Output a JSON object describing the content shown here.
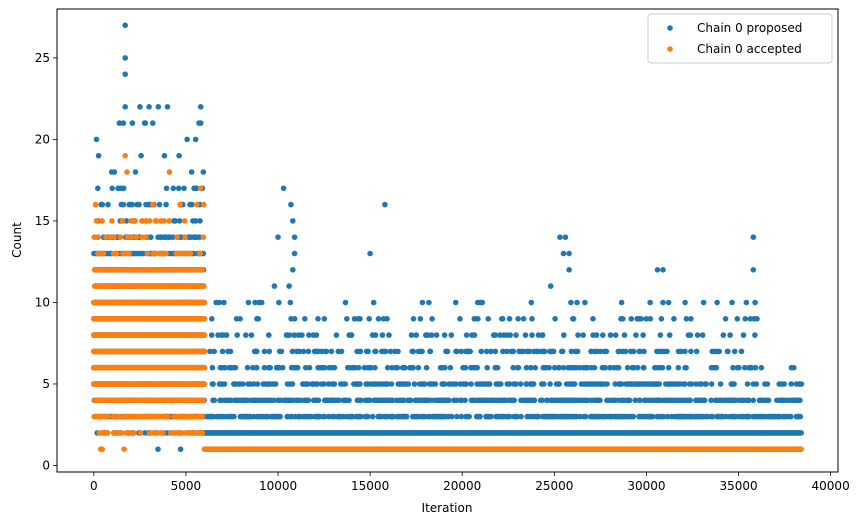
{
  "chart_data": {
    "type": "scatter",
    "xlabel": "Iteration",
    "ylabel": "Count",
    "xlim": [
      -2000,
      40400
    ],
    "ylim": [
      -0.4,
      28.0
    ],
    "xticks": [
      0,
      5000,
      10000,
      15000,
      20000,
      25000,
      30000,
      35000,
      40000
    ],
    "yticks": [
      0,
      5,
      10,
      15,
      20,
      25
    ],
    "grid": false,
    "legend": "top-right",
    "series": [
      {
        "name": "Chain 0 proposed",
        "color": "#1f77b4",
        "segments": [
          {
            "x_range": [
              0,
              6000
            ],
            "levels": [
              [
                1,
                0.02
              ],
              [
                2,
                0.35
              ],
              [
                3,
                0.6
              ],
              [
                4,
                0.85
              ],
              [
                5,
                0.95
              ],
              [
                6,
                0.95
              ],
              [
                7,
                0.95
              ],
              [
                8,
                0.95
              ],
              [
                9,
                0.95
              ],
              [
                10,
                0.95
              ],
              [
                11,
                0.9
              ],
              [
                12,
                0.85
              ],
              [
                13,
                0.6
              ],
              [
                14,
                0.45
              ],
              [
                15,
                0.2
              ],
              [
                16,
                0.15
              ],
              [
                17,
                0.08
              ],
              [
                18,
                0.05
              ],
              [
                19,
                0.03
              ],
              [
                20,
                0.02
              ],
              [
                21,
                0.015
              ],
              [
                22,
                0.01
              ]
            ]
          },
          {
            "x_range": [
              6000,
              38400
            ],
            "levels": [
              [
                2,
                1.0
              ],
              [
                3,
                0.55
              ]
            ]
          },
          {
            "x_range": [
              6300,
              11000
            ],
            "levels": [
              [
                4,
                0.55
              ],
              [
                5,
                0.35
              ],
              [
                6,
                0.25
              ],
              [
                7,
                0.2
              ],
              [
                8,
                0.15
              ],
              [
                9,
                0.08
              ],
              [
                10,
                0.04
              ]
            ]
          },
          {
            "x_range": [
              11000,
              16000
            ],
            "levels": [
              [
                4,
                0.55
              ],
              [
                5,
                0.35
              ],
              [
                6,
                0.25
              ],
              [
                7,
                0.2
              ],
              [
                8,
                0.15
              ],
              [
                9,
                0.08
              ],
              [
                10,
                0.04
              ]
            ]
          },
          {
            "x_range": [
              16000,
              21000
            ],
            "levels": [
              [
                4,
                0.55
              ],
              [
                5,
                0.35
              ],
              [
                6,
                0.25
              ],
              [
                7,
                0.2
              ],
              [
                8,
                0.15
              ],
              [
                9,
                0.08
              ],
              [
                10,
                0.04
              ]
            ]
          },
          {
            "x_range": [
              21000,
              26000
            ],
            "levels": [
              [
                4,
                0.55
              ],
              [
                5,
                0.35
              ],
              [
                6,
                0.25
              ],
              [
                7,
                0.2
              ],
              [
                8,
                0.15
              ],
              [
                9,
                0.08
              ],
              [
                10,
                0.04
              ]
            ]
          },
          {
            "x_range": [
              26000,
              31000
            ],
            "levels": [
              [
                4,
                0.55
              ],
              [
                5,
                0.35
              ],
              [
                6,
                0.25
              ],
              [
                7,
                0.2
              ],
              [
                8,
                0.15
              ],
              [
                9,
                0.08
              ],
              [
                10,
                0.04
              ]
            ]
          },
          {
            "x_range": [
              31000,
              36000
            ],
            "levels": [
              [
                4,
                0.55
              ],
              [
                5,
                0.35
              ],
              [
                6,
                0.25
              ],
              [
                7,
                0.2
              ],
              [
                8,
                0.15
              ],
              [
                9,
                0.08
              ],
              [
                10,
                0.04
              ]
            ]
          },
          {
            "x_range": [
              36000,
              38400
            ],
            "levels": [
              [
                4,
                0.5
              ],
              [
                5,
                0.3
              ],
              [
                6,
                0.15
              ]
            ]
          }
        ],
        "extra_points": [
          [
            1700,
            27
          ],
          [
            1700,
            25
          ],
          [
            1700,
            24
          ],
          [
            1700,
            22
          ],
          [
            2500,
            22
          ],
          [
            3000,
            22
          ],
          [
            3500,
            22
          ],
          [
            4000,
            22
          ],
          [
            5800,
            22
          ],
          [
            1600,
            21
          ],
          [
            2800,
            21
          ],
          [
            3200,
            21
          ],
          [
            5800,
            21
          ],
          [
            10300,
            17
          ],
          [
            10700,
            16
          ],
          [
            10800,
            15
          ],
          [
            10900,
            14
          ],
          [
            10000,
            14
          ],
          [
            10900,
            13
          ],
          [
            10800,
            12
          ],
          [
            10600,
            11
          ],
          [
            9800,
            11
          ],
          [
            15000,
            13
          ],
          [
            15800,
            16
          ],
          [
            21000,
            10
          ],
          [
            20700,
            9
          ],
          [
            25600,
            14
          ],
          [
            25300,
            14
          ],
          [
            25500,
            13
          ],
          [
            25800,
            13
          ],
          [
            25800,
            12
          ],
          [
            24800,
            11
          ],
          [
            25900,
            10
          ],
          [
            30600,
            12
          ],
          [
            30900,
            12
          ],
          [
            30900,
            10
          ],
          [
            30200,
            10
          ],
          [
            35800,
            14
          ],
          [
            35800,
            12
          ],
          [
            35900,
            10
          ],
          [
            38000,
            6
          ],
          [
            38300,
            5
          ]
        ]
      },
      {
        "name": "Chain 0 accepted",
        "color": "#ff7f0e",
        "segments": [
          {
            "x_range": [
              0,
              6000
            ],
            "levels": [
              [
                1,
                0.04
              ],
              [
                2,
                0.35
              ],
              [
                3,
                0.55
              ],
              [
                4,
                0.8
              ],
              [
                5,
                0.95
              ],
              [
                6,
                0.95
              ],
              [
                7,
                0.95
              ],
              [
                8,
                0.95
              ],
              [
                9,
                0.95
              ],
              [
                10,
                0.9
              ],
              [
                11,
                0.8
              ],
              [
                12,
                0.7
              ],
              [
                13,
                0.3
              ],
              [
                14,
                0.2
              ],
              [
                15,
                0.1
              ],
              [
                16,
                0.05
              ]
            ]
          },
          {
            "x_range": [
              6000,
              38400
            ],
            "levels": [
              [
                1,
                1.0
              ]
            ]
          }
        ],
        "extra_points": [
          [
            1700,
            19
          ],
          [
            1800,
            18
          ],
          [
            4100,
            18
          ],
          [
            5800,
            17
          ],
          [
            3200,
            16
          ]
        ]
      }
    ]
  }
}
